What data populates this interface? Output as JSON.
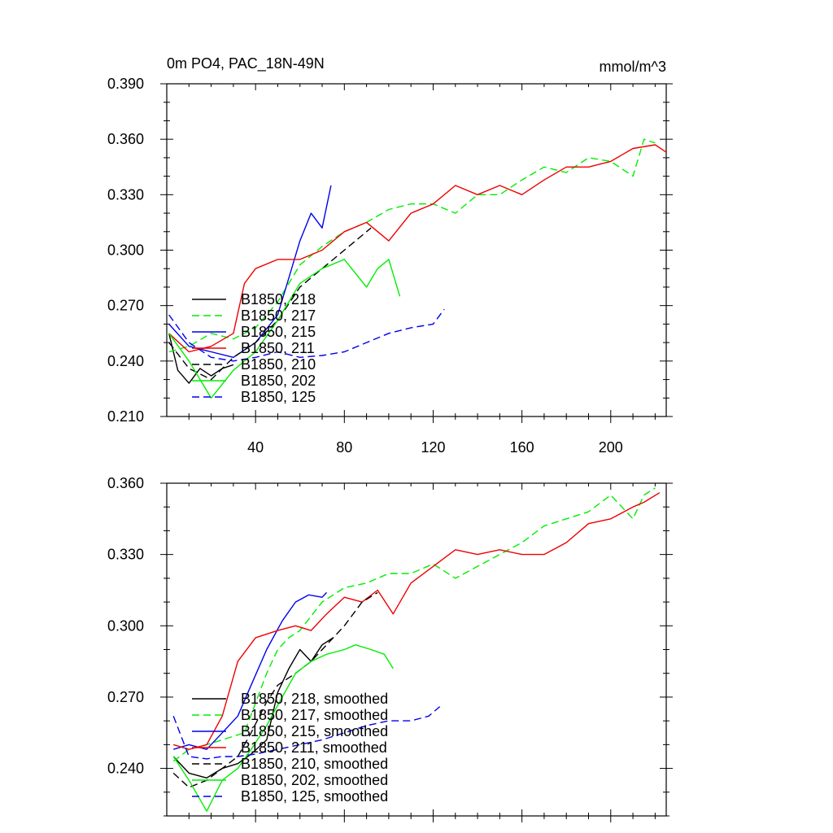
{
  "chart_data": [
    {
      "type": "line",
      "title_left": "0m PO4, PAC_18N-49N",
      "title_right": "mmol/m^3",
      "xlim": [
        0,
        225
      ],
      "ylim": [
        0.21,
        0.39
      ],
      "xticks": [
        40,
        80,
        120,
        160,
        200
      ],
      "yticks": [
        0.21,
        0.24,
        0.27,
        0.3,
        0.33,
        0.36,
        0.39
      ],
      "ytick_labels": [
        "0.210",
        "0.240",
        "0.270",
        "0.300",
        "0.330",
        "0.360",
        "0.390"
      ],
      "legend": [
        "B1850, 218",
        "B1850, 217",
        "B1850, 215",
        "B1850, 211",
        "B1850, 210",
        "B1850, 202",
        "B1850, 125"
      ],
      "series": [
        {
          "name": "B1850, 218",
          "color": "#000000",
          "dash": "solid",
          "points": [
            [
              1,
              0.255
            ],
            [
              5,
              0.235
            ],
            [
              10,
              0.228
            ],
            [
              15,
              0.236
            ],
            [
              20,
              0.232
            ],
            [
              25,
              0.236
            ],
            [
              30,
              0.238
            ]
          ]
        },
        {
          "name": "B1850, 217",
          "color": "#00ee00",
          "dash": "dashed",
          "points": [
            [
              1,
              0.245
            ],
            [
              10,
              0.248
            ],
            [
              20,
              0.255
            ],
            [
              30,
              0.252
            ],
            [
              40,
              0.258
            ],
            [
              50,
              0.272
            ],
            [
              60,
              0.292
            ],
            [
              70,
              0.302
            ],
            [
              80,
              0.31
            ],
            [
              90,
              0.315
            ],
            [
              100,
              0.322
            ],
            [
              110,
              0.325
            ],
            [
              120,
              0.325
            ],
            [
              130,
              0.32
            ],
            [
              140,
              0.33
            ],
            [
              150,
              0.33
            ],
            [
              160,
              0.338
            ],
            [
              170,
              0.345
            ],
            [
              180,
              0.342
            ],
            [
              190,
              0.35
            ],
            [
              200,
              0.348
            ],
            [
              210,
              0.34
            ],
            [
              215,
              0.36
            ],
            [
              220,
              0.358
            ]
          ]
        },
        {
          "name": "B1850, 215",
          "color": "#0000ee",
          "dash": "solid",
          "points": [
            [
              1,
              0.26
            ],
            [
              10,
              0.248
            ],
            [
              20,
              0.245
            ],
            [
              30,
              0.242
            ],
            [
              40,
              0.25
            ],
            [
              50,
              0.265
            ],
            [
              55,
              0.285
            ],
            [
              60,
              0.305
            ],
            [
              65,
              0.32
            ],
            [
              70,
              0.312
            ],
            [
              74,
              0.335
            ]
          ]
        },
        {
          "name": "B1850, 211",
          "color": "#ee0000",
          "dash": "solid",
          "points": [
            [
              1,
              0.255
            ],
            [
              10,
              0.245
            ],
            [
              20,
              0.248
            ],
            [
              30,
              0.255
            ],
            [
              35,
              0.282
            ],
            [
              40,
              0.29
            ],
            [
              50,
              0.295
            ],
            [
              60,
              0.295
            ],
            [
              70,
              0.3
            ],
            [
              80,
              0.31
            ],
            [
              90,
              0.315
            ],
            [
              100,
              0.305
            ],
            [
              110,
              0.32
            ],
            [
              120,
              0.325
            ],
            [
              130,
              0.335
            ],
            [
              140,
              0.33
            ],
            [
              150,
              0.335
            ],
            [
              160,
              0.33
            ],
            [
              170,
              0.338
            ],
            [
              180,
              0.345
            ],
            [
              190,
              0.345
            ],
            [
              200,
              0.348
            ],
            [
              210,
              0.355
            ],
            [
              220,
              0.357
            ],
            [
              225,
              0.353
            ]
          ]
        },
        {
          "name": "B1850, 210",
          "color": "#000000",
          "dash": "dashed",
          "points": [
            [
              1,
              0.25
            ],
            [
              10,
              0.236
            ],
            [
              20,
              0.23
            ],
            [
              30,
              0.242
            ],
            [
              40,
              0.25
            ],
            [
              50,
              0.262
            ],
            [
              60,
              0.28
            ],
            [
              70,
              0.29
            ],
            [
              80,
              0.3
            ],
            [
              85,
              0.305
            ],
            [
              92,
              0.312
            ]
          ]
        },
        {
          "name": "B1850, 202",
          "color": "#00ee00",
          "dash": "solid",
          "points": [
            [
              1,
              0.255
            ],
            [
              10,
              0.24
            ],
            [
              20,
              0.22
            ],
            [
              30,
              0.235
            ],
            [
              40,
              0.245
            ],
            [
              50,
              0.262
            ],
            [
              60,
              0.282
            ],
            [
              70,
              0.29
            ],
            [
              80,
              0.295
            ],
            [
              90,
              0.28
            ],
            [
              95,
              0.29
            ],
            [
              100,
              0.295
            ],
            [
              105,
              0.275
            ]
          ]
        },
        {
          "name": "B1850, 125",
          "color": "#0000ee",
          "dash": "dashed",
          "points": [
            [
              1,
              0.265
            ],
            [
              10,
              0.25
            ],
            [
              20,
              0.242
            ],
            [
              30,
              0.24
            ],
            [
              40,
              0.242
            ],
            [
              50,
              0.245
            ],
            [
              60,
              0.242
            ],
            [
              70,
              0.243
            ],
            [
              80,
              0.245
            ],
            [
              90,
              0.25
            ],
            [
              100,
              0.255
            ],
            [
              110,
              0.258
            ],
            [
              120,
              0.26
            ],
            [
              125,
              0.268
            ]
          ]
        }
      ]
    },
    {
      "type": "line",
      "xlim": [
        0,
        225
      ],
      "ylim": [
        0.22,
        0.36
      ],
      "yticks": [
        0.24,
        0.27,
        0.3,
        0.33,
        0.36
      ],
      "ytick_labels": [
        "0.240",
        "0.270",
        "0.300",
        "0.330",
        "0.360"
      ],
      "legend": [
        "B1850, 218, smoothed",
        "B1850, 217, smoothed",
        "B1850, 215, smoothed",
        "B1850, 211, smoothed",
        "B1850, 210, smoothed",
        "B1850, 202, smoothed",
        "B1850, 125, smoothed"
      ],
      "series": [
        {
          "name": "B1850, 218, smoothed",
          "color": "#000000",
          "dash": "solid",
          "points": [
            [
              3,
              0.245
            ],
            [
              10,
              0.238
            ],
            [
              18,
              0.236
            ],
            [
              25,
              0.24
            ],
            [
              32,
              0.242
            ],
            [
              38,
              0.246
            ],
            [
              45,
              0.252
            ],
            [
              50,
              0.272
            ],
            [
              55,
              0.282
            ],
            [
              60,
              0.29
            ],
            [
              65,
              0.285
            ],
            [
              70,
              0.292
            ],
            [
              75,
              0.295
            ]
          ]
        },
        {
          "name": "B1850, 217, smoothed",
          "color": "#00ee00",
          "dash": "dashed",
          "points": [
            [
              3,
              0.243
            ],
            [
              10,
              0.248
            ],
            [
              18,
              0.25
            ],
            [
              25,
              0.252
            ],
            [
              35,
              0.255
            ],
            [
              45,
              0.28
            ],
            [
              50,
              0.29
            ],
            [
              55,
              0.295
            ],
            [
              60,
              0.298
            ],
            [
              70,
              0.31
            ],
            [
              80,
              0.316
            ],
            [
              90,
              0.318
            ],
            [
              100,
              0.322
            ],
            [
              110,
              0.322
            ],
            [
              120,
              0.326
            ],
            [
              130,
              0.32
            ],
            [
              140,
              0.325
            ],
            [
              150,
              0.33
            ],
            [
              160,
              0.335
            ],
            [
              170,
              0.342
            ],
            [
              180,
              0.345
            ],
            [
              190,
              0.348
            ],
            [
              200,
              0.355
            ],
            [
              210,
              0.345
            ],
            [
              215,
              0.355
            ],
            [
              220,
              0.358
            ]
          ]
        },
        {
          "name": "B1850, 215, smoothed",
          "color": "#0000ee",
          "dash": "solid",
          "points": [
            [
              3,
              0.248
            ],
            [
              10,
              0.25
            ],
            [
              18,
              0.248
            ],
            [
              25,
              0.255
            ],
            [
              32,
              0.262
            ],
            [
              38,
              0.275
            ],
            [
              45,
              0.29
            ],
            [
              52,
              0.302
            ],
            [
              58,
              0.31
            ],
            [
              64,
              0.313
            ],
            [
              70,
              0.312
            ],
            [
              72,
              0.314
            ]
          ]
        },
        {
          "name": "B1850, 211, smoothed",
          "color": "#ee0000",
          "dash": "solid",
          "points": [
            [
              3,
              0.25
            ],
            [
              10,
              0.248
            ],
            [
              18,
              0.25
            ],
            [
              25,
              0.262
            ],
            [
              32,
              0.285
            ],
            [
              40,
              0.295
            ],
            [
              50,
              0.298
            ],
            [
              58,
              0.3
            ],
            [
              65,
              0.298
            ],
            [
              72,
              0.305
            ],
            [
              80,
              0.312
            ],
            [
              88,
              0.31
            ],
            [
              95,
              0.315
            ],
            [
              102,
              0.305
            ],
            [
              110,
              0.318
            ],
            [
              120,
              0.325
            ],
            [
              130,
              0.332
            ],
            [
              140,
              0.33
            ],
            [
              150,
              0.332
            ],
            [
              160,
              0.33
            ],
            [
              170,
              0.33
            ],
            [
              180,
              0.335
            ],
            [
              190,
              0.343
            ],
            [
              200,
              0.345
            ],
            [
              210,
              0.35
            ],
            [
              215,
              0.352
            ],
            [
              222,
              0.356
            ]
          ]
        },
        {
          "name": "B1850, 210, smoothed",
          "color": "#000000",
          "dash": "dashed",
          "points": [
            [
              3,
              0.238
            ],
            [
              10,
              0.232
            ],
            [
              18,
              0.235
            ],
            [
              25,
              0.24
            ],
            [
              32,
              0.245
            ],
            [
              38,
              0.255
            ],
            [
              45,
              0.268
            ],
            [
              50,
              0.275
            ],
            [
              58,
              0.28
            ],
            [
              65,
              0.285
            ],
            [
              72,
              0.292
            ],
            [
              80,
              0.3
            ],
            [
              88,
              0.31
            ],
            [
              95,
              0.314
            ]
          ]
        },
        {
          "name": "B1850, 202, smoothed",
          "color": "#00ee00",
          "dash": "solid",
          "points": [
            [
              3,
              0.245
            ],
            [
              10,
              0.235
            ],
            [
              18,
              0.222
            ],
            [
              25,
              0.235
            ],
            [
              32,
              0.24
            ],
            [
              38,
              0.248
            ],
            [
              45,
              0.258
            ],
            [
              52,
              0.27
            ],
            [
              58,
              0.28
            ],
            [
              65,
              0.285
            ],
            [
              72,
              0.288
            ],
            [
              80,
              0.29
            ],
            [
              85,
              0.292
            ],
            [
              92,
              0.29
            ],
            [
              98,
              0.288
            ],
            [
              102,
              0.282
            ]
          ]
        },
        {
          "name": "B1850, 125, smoothed",
          "color": "#0000ee",
          "dash": "dashed",
          "points": [
            [
              3,
              0.262
            ],
            [
              10,
              0.245
            ],
            [
              18,
              0.244
            ],
            [
              25,
              0.245
            ],
            [
              32,
              0.245
            ],
            [
              40,
              0.246
            ],
            [
              50,
              0.248
            ],
            [
              60,
              0.25
            ],
            [
              70,
              0.252
            ],
            [
              80,
              0.255
            ],
            [
              90,
              0.258
            ],
            [
              100,
              0.26
            ],
            [
              110,
              0.26
            ],
            [
              118,
              0.262
            ],
            [
              123,
              0.266
            ]
          ]
        }
      ]
    }
  ]
}
